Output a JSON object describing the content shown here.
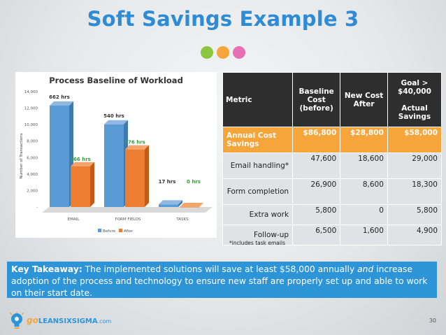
{
  "slide": {
    "title": "Soft Savings Example 3",
    "page_number": "30",
    "dot_colors": [
      "#8cc63f",
      "#f5a53a",
      "#e76fb4"
    ],
    "footnote": "*includes task emails"
  },
  "chart_data": {
    "type": "bar",
    "title": "Process Baseline of Workload",
    "ylabel": "Number of Transactions",
    "xlabel": "",
    "categories": [
      "EMAIL",
      "FORM FIELDS",
      "TASKS"
    ],
    "series": [
      {
        "name": "Before",
        "values": [
          662,
          540,
          17
        ],
        "labels": [
          "662 hrs",
          "540 hrs",
          "17 hrs"
        ],
        "color": "#5b9bd5"
      },
      {
        "name": "After",
        "values": [
          266,
          376,
          0
        ],
        "labels": [
          "266 hrs",
          "376 hrs",
          "0 hrs"
        ],
        "color": "#ed7d31"
      }
    ],
    "yticks": [
      "-",
      "2,000",
      "4,000",
      "6,000",
      "8,000",
      "10,000",
      "12,000",
      "14,000"
    ],
    "ylim": [
      0,
      14000
    ],
    "legend_position": "bottom",
    "grid": false
  },
  "table": {
    "headers": [
      "Metric",
      "Baseline Cost (before)",
      "New Cost After",
      "Goal > $40,000\n\nActual Savings"
    ],
    "rows": [
      {
        "metric": "Annual Cost Savings",
        "baseline": "$86,800",
        "new": "$28,800",
        "savings": "$58,000",
        "highlight": true
      },
      {
        "metric": "Email handling*",
        "baseline": "47,600",
        "new": "18,600",
        "savings": "29,000",
        "highlight": false
      },
      {
        "metric": "Form completion",
        "baseline": "26,900",
        "new": "8,600",
        "savings": "18,300",
        "highlight": false
      },
      {
        "metric": "Extra work",
        "baseline": "5,800",
        "new": "0",
        "savings": "5,800",
        "highlight": false
      },
      {
        "metric": "Follow-up",
        "baseline": "6,500",
        "new": "1,600",
        "savings": "4,900",
        "highlight": false
      }
    ]
  },
  "takeaway": {
    "label": "Key Takeaway:",
    "text_1": " The implemented solutions will save at least $58,000 annually ",
    "emphasis": "and",
    "text_2": " increase adoption of the process and technology to ensure new staff are properly set up and able to work on their start date."
  },
  "logo": {
    "prefix": "go",
    "name": "LEANSIXSIGMA",
    "suffix": ".com",
    "icon": "lightbulb-icon"
  }
}
